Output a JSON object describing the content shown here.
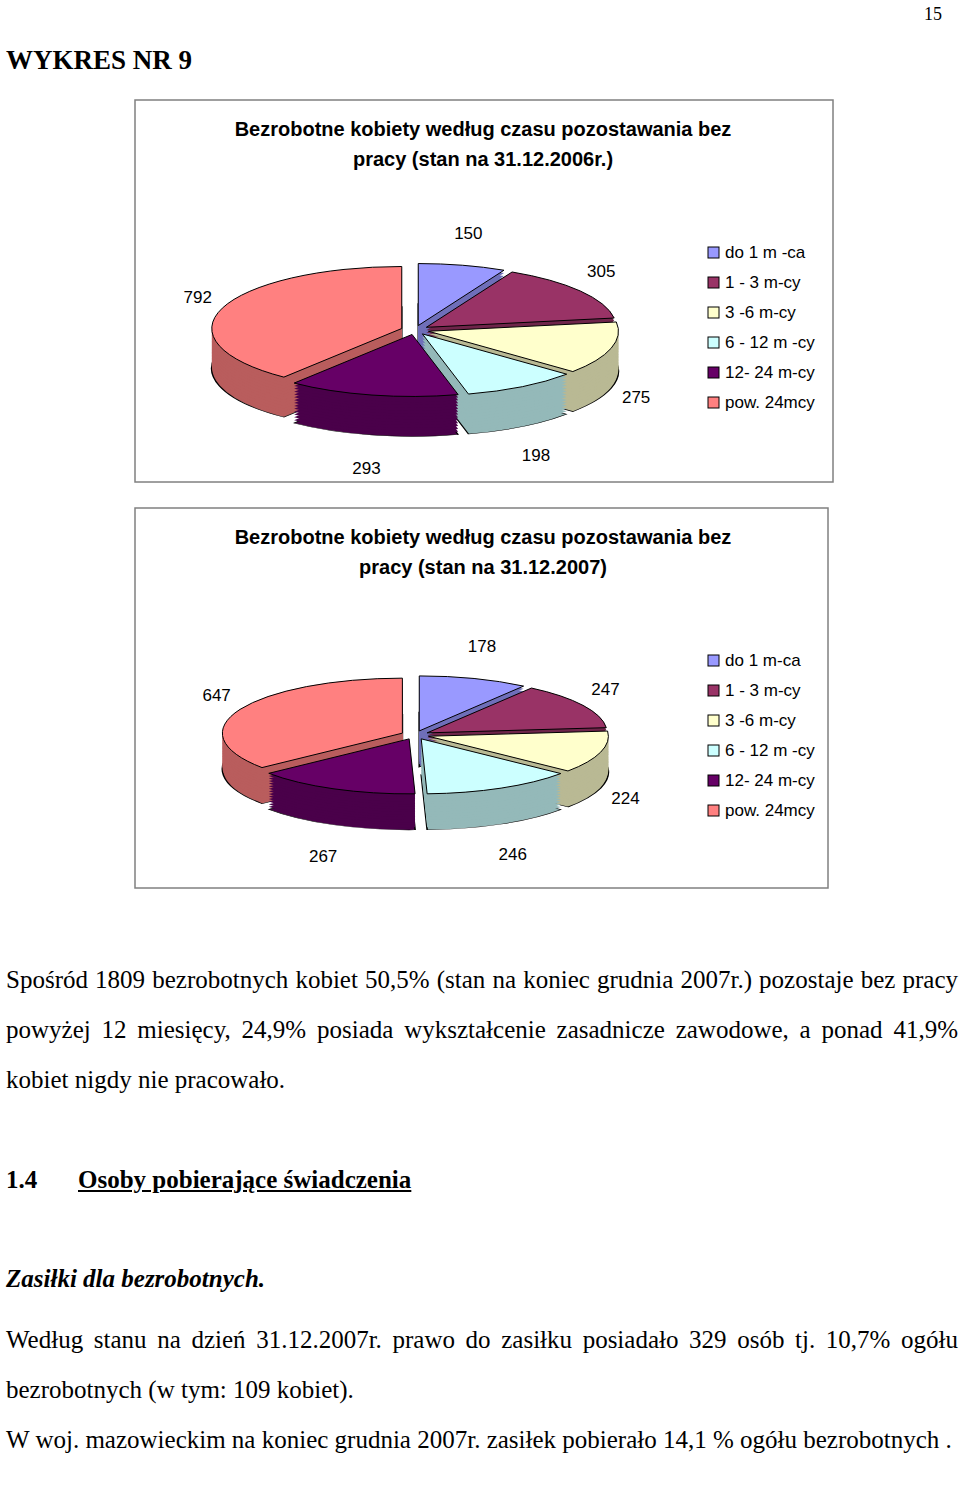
{
  "page_number": "15",
  "heading": "WYKRES NR 9",
  "chart_data": [
    {
      "type": "pie",
      "title": "Bezrobotne kobiety według czasu pozostawania bez pracy  (stan na 31.12.2006r.)",
      "categories": [
        "do 1 m -ca",
        "1 - 3 m-cy",
        "3 -6 m-cy",
        "6 - 12 m -cy",
        "12- 24 m-cy",
        "pow. 24mcy"
      ],
      "values": [
        150,
        305,
        275,
        198,
        293,
        792
      ],
      "colors": [
        "#9999ff",
        "#993366",
        "#ffffcc",
        "#ccffff",
        "#660066",
        "#ff8080"
      ],
      "data_labels": true,
      "legend": "right"
    },
    {
      "type": "pie",
      "title": "Bezrobotne kobiety według czasu pozostawania bez pracy  (stan na 31.12.2007)",
      "categories": [
        "do 1 m-ca",
        "1 - 3 m-cy",
        "3 -6 m-cy",
        "6 - 12 m -cy",
        "12- 24 m-cy",
        "pow. 24mcy"
      ],
      "values": [
        178,
        247,
        224,
        246,
        267,
        647
      ],
      "colors": [
        "#9999ff",
        "#993366",
        "#ffffcc",
        "#ccffff",
        "#660066",
        "#ff8080"
      ],
      "data_labels": true,
      "legend": "right"
    }
  ],
  "summary": "Spośród 1809 bezrobotnych kobiet 50,5% (stan na koniec grudnia 2007r.) pozostaje bez pracy powyżej 12 miesięcy, 24,9% posiada wykształcenie zasadnicze zawodowe, a ponad 41,9% kobiet nigdy nie pracowało.",
  "section": {
    "number": "1.4",
    "title": "Osoby pobierające świadczenia"
  },
  "subsection": "Zasiłki dla bezrobotnych.",
  "paragraphs": [
    "Według stanu na dzień 31.12.2007r. prawo do zasiłku posiadało 329 osób tj. 10,7%  ogółu bezrobotnych (w tym: 109 kobiet).",
    "W woj. mazowieckim na koniec grudnia 2007r. zasiłek pobierało 14,1 % ogółu bezrobotnych ."
  ]
}
